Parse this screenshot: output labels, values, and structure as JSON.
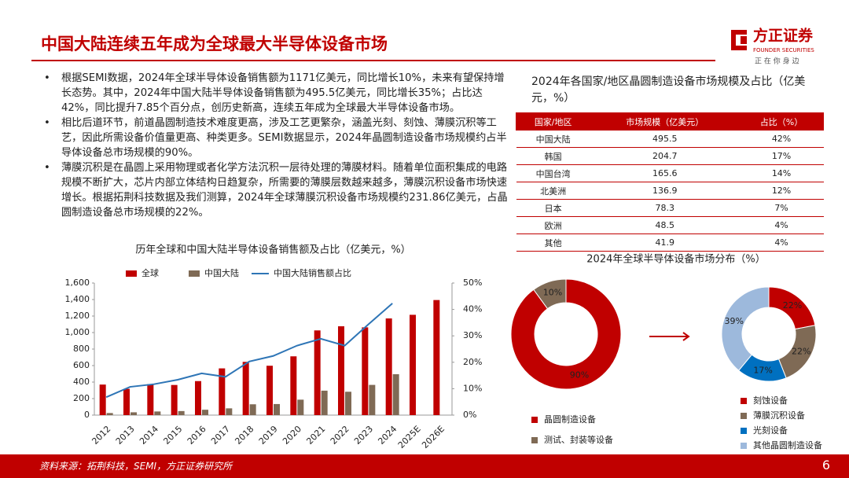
{
  "header": {
    "title": "中国大陆连续五年成为全球最大半导体设备市场",
    "logo": "方正证券",
    "logo_en": "FOUNDER SECURITIES",
    "slogan": "正 在 你 身 边"
  },
  "bullets": [
    "根据SEMI数据，2024年全球半导体设备销售额为1171亿美元，同比增长10%，未来有望保持增长态势。其中，2024年中国大陆半导体设备销售额为495.5亿美元，同比增长35%；占比达42%，同比提升7.85个百分点，创历史新高，连续五年成为全球最大半导体设备市场。",
    "相比后道环节，前道晶圆制造技术难度更高，涉及工艺更繁杂，涵盖光刻、刻蚀、薄膜沉积等工艺，因此所需设备价值量更高、种类更多。SEMI数据显示，2024年晶圆制造设备市场规模约占半导体设备总市场规模的90%。",
    "薄膜沉积是在晶圆上采用物理或者化学方法沉积一层待处理的薄膜材料。随着单位面积集成的电路规模不断扩大，芯片内部立体结构日趋复杂，所需要的薄膜层数越来越多，薄膜沉积设备市场快速增长。根据拓荆科技数据及我们测算，2024年全球薄膜沉积设备市场规模约231.86亿美元，占晶圆制造设备总市场规模的22%。"
  ],
  "table": {
    "title": "2024年各国家/地区晶圆制造设备市场规模及占比（亿美元，%）",
    "headers": [
      "国家/地区",
      "市场规模（亿美元）",
      "占比（%）"
    ],
    "rows": [
      [
        "中国大陆",
        "495.5",
        "42%"
      ],
      [
        "韩国",
        "204.7",
        "17%"
      ],
      [
        "中国台湾",
        "165.6",
        "14%"
      ],
      [
        "北美洲",
        "136.9",
        "12%"
      ],
      [
        "日本",
        "78.3",
        "7%"
      ],
      [
        "欧洲",
        "48.5",
        "4%"
      ],
      [
        "其他",
        "41.9",
        "4%"
      ]
    ]
  },
  "chart_data": [
    {
      "type": "bar",
      "title": "历年全球和中国大陆半导体设备销售额及占比（亿美元，%）",
      "categories": [
        "2012",
        "2013",
        "2014",
        "2015",
        "2016",
        "2017",
        "2018",
        "2019",
        "2020",
        "2021",
        "2022",
        "2023",
        "2024",
        "2025E",
        "2026E"
      ],
      "series": [
        {
          "name": "全球",
          "color": "#c00000",
          "values": [
            370,
            318,
            375,
            365,
            412,
            566,
            645,
            598,
            712,
            1026,
            1076,
            1063,
            1171,
            1215,
            1394
          ]
        },
        {
          "name": "中国大陆",
          "color": "#7f6a55",
          "values": [
            25,
            34,
            44,
            49,
            65,
            82,
            131,
            134,
            187,
            296,
            283,
            366,
            495.5,
            null,
            null
          ]
        },
        {
          "name": "中国大陆销售额占比",
          "color": "#2e75b6",
          "type": "line",
          "axis": "y2",
          "values": [
            6.8,
            10.7,
            11.7,
            13.4,
            15.8,
            14.5,
            20.3,
            22.4,
            26.3,
            28.9,
            26.3,
            34.4,
            42.3,
            null,
            null
          ]
        }
      ],
      "ylim": [
        0,
        1600
      ],
      "yticks": [
        0,
        200,
        400,
        600,
        800,
        {
          "value": 1000,
          "label": "1,000"
        },
        {
          "value": 1200,
          "label": "1,200"
        },
        {
          "value": 1400,
          "label": "1,400"
        },
        {
          "value": 1600,
          "label": "1,600"
        }
      ],
      "y2lim": [
        0,
        50
      ],
      "y2ticks": [
        {
          "value": 0,
          "label": "0%"
        },
        {
          "value": 10,
          "label": "10%"
        },
        {
          "value": 20,
          "label": "20%"
        },
        {
          "value": 30,
          "label": "30%"
        },
        {
          "value": 40,
          "label": "40%"
        },
        {
          "value": 50,
          "label": "50%"
        }
      ]
    },
    {
      "type": "pie",
      "donut": true,
      "title": "2024年全球半导体设备市场分布（%）",
      "categories": [
        "晶圆制造设备",
        "测试、封装等设备"
      ],
      "values": [
        90,
        10
      ],
      "value_labels": [
        "90%",
        "10%"
      ],
      "colors": [
        "#c00000",
        "#7f6a55"
      ]
    },
    {
      "type": "pie",
      "donut": true,
      "categories": [
        "刻蚀设备",
        "薄膜沉积设备",
        "光刻设备",
        "其他晶圆制造设备"
      ],
      "values": [
        22,
        22,
        17,
        39
      ],
      "value_labels": [
        "22%",
        "22%",
        "17%",
        "39%"
      ],
      "colors": [
        "#c00000",
        "#7f6a55",
        "#0070c0",
        "#9db9dc"
      ]
    }
  ],
  "footer": {
    "source": "资料来源：拓荆科技，SEMI，方正证券研究所",
    "page": "6"
  }
}
